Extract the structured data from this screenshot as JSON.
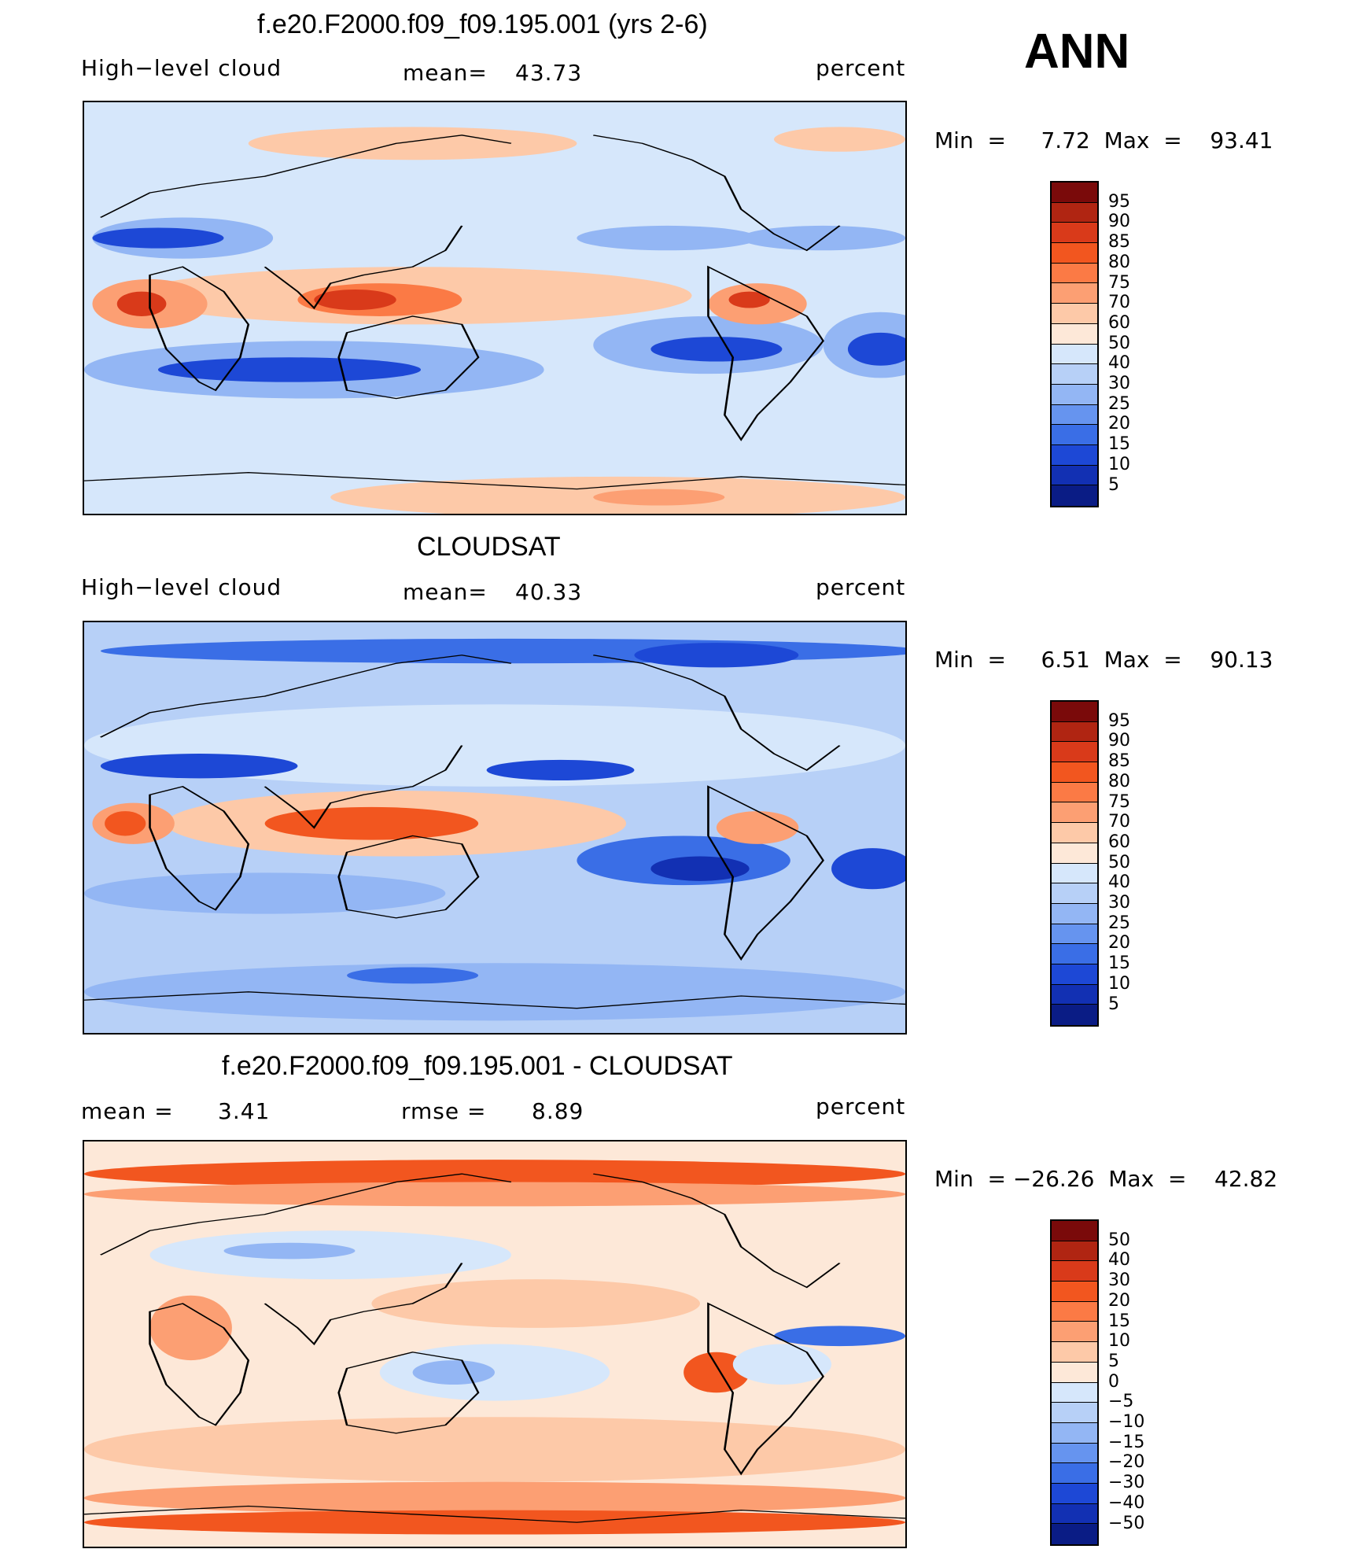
{
  "season": "ANN",
  "panels": [
    {
      "title": "f.e20.F2000.f09_f09.195.001 (yrs 2-6)",
      "left_text": "High−level cloud",
      "mid_label": "mean=",
      "mid_value": "43.73",
      "right_text": "percent",
      "range_text": "Min  =     7.72  Max  =    93.41",
      "colorbar": {
        "labels": [
          "95",
          "90",
          "85",
          "80",
          "75",
          "70",
          "60",
          "50",
          "40",
          "30",
          "25",
          "20",
          "15",
          "10",
          "5"
        ],
        "colors": [
          "#7a0a0a",
          "#b02512",
          "#d93a1a",
          "#f2561f",
          "#fb7a45",
          "#fc9f73",
          "#fdc9a8",
          "#fde8d8",
          "#d6e7fb",
          "#b7d0f7",
          "#93b6f4",
          "#6694ef",
          "#3a6ee6",
          "#1d48d6",
          "#1230b3",
          "#0a1c85"
        ]
      },
      "fields": {
        "base": "#d6e7fb",
        "blobs": [
          {
            "c": "#93b6f4",
            "cx": 12,
            "cy": 33,
            "rx": 11,
            "ry": 5
          },
          {
            "c": "#1d48d6",
            "cx": 9,
            "cy": 33,
            "rx": 8,
            "ry": 2.5
          },
          {
            "c": "#93b6f4",
            "cx": 28,
            "cy": 65,
            "rx": 28,
            "ry": 7
          },
          {
            "c": "#1d48d6",
            "cx": 25,
            "cy": 65,
            "rx": 16,
            "ry": 3
          },
          {
            "c": "#fdc9a8",
            "cx": 40,
            "cy": 47,
            "rx": 34,
            "ry": 7
          },
          {
            "c": "#fb7a45",
            "cx": 36,
            "cy": 48,
            "rx": 10,
            "ry": 4
          },
          {
            "c": "#d93a1a",
            "cx": 33,
            "cy": 48,
            "rx": 5,
            "ry": 2.5
          },
          {
            "c": "#fc9f73",
            "cx": 8,
            "cy": 49,
            "rx": 7,
            "ry": 6
          },
          {
            "c": "#d93a1a",
            "cx": 7,
            "cy": 49,
            "rx": 3,
            "ry": 3
          },
          {
            "c": "#93b6f4",
            "cx": 76,
            "cy": 59,
            "rx": 14,
            "ry": 7
          },
          {
            "c": "#1d48d6",
            "cx": 77,
            "cy": 60,
            "rx": 8,
            "ry": 3
          },
          {
            "c": "#93b6f4",
            "cx": 97,
            "cy": 59,
            "rx": 7,
            "ry": 8
          },
          {
            "c": "#1d48d6",
            "cx": 97,
            "cy": 60,
            "rx": 4,
            "ry": 4
          },
          {
            "c": "#fc9f73",
            "cx": 82,
            "cy": 49,
            "rx": 6,
            "ry": 5
          },
          {
            "c": "#d93a1a",
            "cx": 81,
            "cy": 48,
            "rx": 2.5,
            "ry": 2
          },
          {
            "c": "#93b6f4",
            "cx": 71,
            "cy": 33,
            "rx": 11,
            "ry": 3
          },
          {
            "c": "#93b6f4",
            "cx": 90,
            "cy": 33,
            "rx": 10,
            "ry": 3
          },
          {
            "c": "#fdc9a8",
            "cx": 65,
            "cy": 96,
            "rx": 35,
            "ry": 5
          },
          {
            "c": "#fc9f73",
            "cx": 70,
            "cy": 96,
            "rx": 8,
            "ry": 2
          },
          {
            "c": "#fdc9a8",
            "cx": 40,
            "cy": 10,
            "rx": 20,
            "ry": 4
          },
          {
            "c": "#fdc9a8",
            "cx": 92,
            "cy": 9,
            "rx": 8,
            "ry": 3
          }
        ]
      }
    },
    {
      "title": "CLOUDSAT",
      "left_text": "High−level cloud",
      "mid_label": "mean=",
      "mid_value": "40.33",
      "right_text": "percent",
      "range_text": "Min  =     6.51  Max  =    90.13",
      "colorbar": {
        "labels": [
          "95",
          "90",
          "85",
          "80",
          "75",
          "70",
          "60",
          "50",
          "40",
          "30",
          "25",
          "20",
          "15",
          "10",
          "5"
        ],
        "colors": [
          "#7a0a0a",
          "#b02512",
          "#d93a1a",
          "#f2561f",
          "#fb7a45",
          "#fc9f73",
          "#fdc9a8",
          "#fde8d8",
          "#d6e7fb",
          "#b7d0f7",
          "#93b6f4",
          "#6694ef",
          "#3a6ee6",
          "#1d48d6",
          "#1230b3",
          "#0a1c85"
        ]
      },
      "fields": {
        "base": "#b7d0f7",
        "blobs": [
          {
            "c": "#3a6ee6",
            "cx": 52,
            "cy": 7,
            "rx": 50,
            "ry": 3
          },
          {
            "c": "#1d48d6",
            "cx": 77,
            "cy": 8,
            "rx": 10,
            "ry": 3
          },
          {
            "c": "#d6e7fb",
            "cx": 50,
            "cy": 30,
            "rx": 50,
            "ry": 10
          },
          {
            "c": "#1d48d6",
            "cx": 14,
            "cy": 35,
            "rx": 12,
            "ry": 3
          },
          {
            "c": "#1d48d6",
            "cx": 58,
            "cy": 36,
            "rx": 9,
            "ry": 2.5
          },
          {
            "c": "#fdc9a8",
            "cx": 38,
            "cy": 49,
            "rx": 28,
            "ry": 8
          },
          {
            "c": "#f2561f",
            "cx": 35,
            "cy": 49,
            "rx": 13,
            "ry": 4
          },
          {
            "c": "#fc9f73",
            "cx": 6,
            "cy": 49,
            "rx": 5,
            "ry": 5
          },
          {
            "c": "#f2561f",
            "cx": 5,
            "cy": 49,
            "rx": 2.5,
            "ry": 3
          },
          {
            "c": "#1d48d6",
            "cx": 25,
            "cy": 65,
            "rx": 18,
            "ry": 3
          },
          {
            "c": "#93b6f4",
            "cx": 22,
            "cy": 66,
            "rx": 22,
            "ry": 5
          },
          {
            "c": "#3a6ee6",
            "cx": 73,
            "cy": 58,
            "rx": 13,
            "ry": 6
          },
          {
            "c": "#1230b3",
            "cx": 75,
            "cy": 60,
            "rx": 6,
            "ry": 3
          },
          {
            "c": "#1d48d6",
            "cx": 96,
            "cy": 60,
            "rx": 5,
            "ry": 5
          },
          {
            "c": "#fc9f73",
            "cx": 82,
            "cy": 50,
            "rx": 5,
            "ry": 4
          },
          {
            "c": "#93b6f4",
            "cx": 50,
            "cy": 90,
            "rx": 50,
            "ry": 7
          },
          {
            "c": "#3a6ee6",
            "cx": 40,
            "cy": 86,
            "rx": 8,
            "ry": 2
          }
        ]
      }
    },
    {
      "title": "f.e20.F2000.f09_f09.195.001 - CLOUDSAT",
      "left_text": "mean  =",
      "left_value": "3.41",
      "mid_label": "rmse  =",
      "mid_value": "8.89",
      "right_text": "percent",
      "range_text": "Min  = −26.26  Max  =    42.82",
      "colorbar": {
        "labels": [
          "50",
          "40",
          "30",
          "20",
          "15",
          "10",
          "5",
          "0",
          "−5",
          "−10",
          "−15",
          "−20",
          "−30",
          "−40",
          "−50"
        ],
        "colors": [
          "#7a0a0a",
          "#b02512",
          "#d93a1a",
          "#f2561f",
          "#fb7a45",
          "#fc9f73",
          "#fdc9a8",
          "#fde8d8",
          "#d6e7fb",
          "#b7d0f7",
          "#93b6f4",
          "#6694ef",
          "#3a6ee6",
          "#1d48d6",
          "#1230b3",
          "#0a1c85"
        ]
      },
      "fields": {
        "base": "#fde8d8",
        "blobs": [
          {
            "c": "#f2561f",
            "cx": 50,
            "cy": 8,
            "rx": 50,
            "ry": 3.5
          },
          {
            "c": "#fc9f73",
            "cx": 50,
            "cy": 13,
            "rx": 50,
            "ry": 3
          },
          {
            "c": "#d6e7fb",
            "cx": 30,
            "cy": 28,
            "rx": 22,
            "ry": 6
          },
          {
            "c": "#93b6f4",
            "cx": 25,
            "cy": 27,
            "rx": 8,
            "ry": 2
          },
          {
            "c": "#fdc9a8",
            "cx": 55,
            "cy": 40,
            "rx": 20,
            "ry": 6
          },
          {
            "c": "#d6e7fb",
            "cx": 50,
            "cy": 57,
            "rx": 14,
            "ry": 7
          },
          {
            "c": "#93b6f4",
            "cx": 45,
            "cy": 57,
            "rx": 5,
            "ry": 3
          },
          {
            "c": "#fc9f73",
            "cx": 13,
            "cy": 46,
            "rx": 5,
            "ry": 8
          },
          {
            "c": "#f2561f",
            "cx": 77,
            "cy": 57,
            "rx": 4,
            "ry": 5
          },
          {
            "c": "#3a6ee6",
            "cx": 92,
            "cy": 48,
            "rx": 8,
            "ry": 2.5
          },
          {
            "c": "#d6e7fb",
            "cx": 85,
            "cy": 55,
            "rx": 6,
            "ry": 5
          },
          {
            "c": "#fdc9a8",
            "cx": 50,
            "cy": 76,
            "rx": 50,
            "ry": 8
          },
          {
            "c": "#fc9f73",
            "cx": 50,
            "cy": 88,
            "rx": 50,
            "ry": 4
          },
          {
            "c": "#f2561f",
            "cx": 50,
            "cy": 94,
            "rx": 50,
            "ry": 3
          }
        ]
      }
    }
  ]
}
